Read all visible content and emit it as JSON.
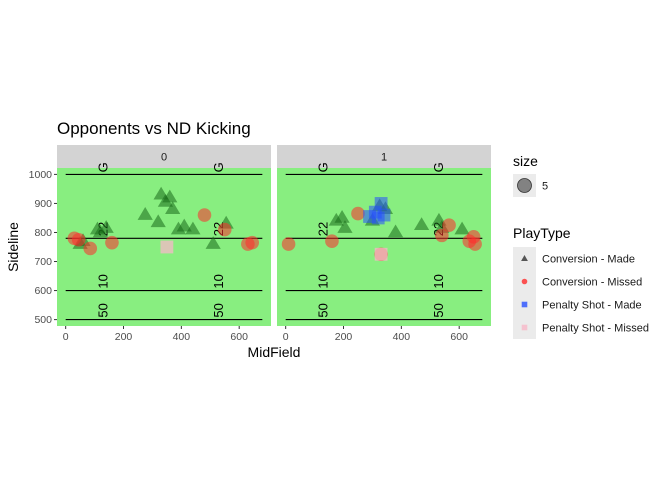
{
  "chart_data": {
    "type": "scatter",
    "title": "Opponents vs ND Kicking",
    "xlabel": "MidField",
    "ylabel": "Sideline",
    "xlim": [
      -30,
      710
    ],
    "ylim": [
      478,
      1022
    ],
    "x_ticks": [
      0,
      200,
      400,
      600
    ],
    "y_ticks": [
      500,
      600,
      700,
      800,
      900,
      1000
    ],
    "panel_background": "#88ee80",
    "strip_background": "#d3d3d3",
    "facets": [
      {
        "label": "0",
        "points": [
          {
            "type": "Conversion - Made",
            "x": 50,
            "y": 760
          },
          {
            "type": "Conversion - Made",
            "x": 60,
            "y": 770
          },
          {
            "type": "Conversion - Made",
            "x": 110,
            "y": 810
          },
          {
            "type": "Conversion - Made",
            "x": 120,
            "y": 800
          },
          {
            "type": "Conversion - Made",
            "x": 140,
            "y": 815
          },
          {
            "type": "Conversion - Made",
            "x": 275,
            "y": 860
          },
          {
            "type": "Conversion - Made",
            "x": 320,
            "y": 835
          },
          {
            "type": "Conversion - Made",
            "x": 330,
            "y": 930
          },
          {
            "type": "Conversion - Made",
            "x": 345,
            "y": 905
          },
          {
            "type": "Conversion - Made",
            "x": 360,
            "y": 920
          },
          {
            "type": "Conversion - Made",
            "x": 370,
            "y": 880
          },
          {
            "type": "Conversion - Made",
            "x": 390,
            "y": 810
          },
          {
            "type": "Conversion - Made",
            "x": 410,
            "y": 820
          },
          {
            "type": "Conversion - Made",
            "x": 440,
            "y": 810
          },
          {
            "type": "Conversion - Made",
            "x": 510,
            "y": 760
          },
          {
            "type": "Conversion - Made",
            "x": 555,
            "y": 830
          },
          {
            "type": "Conversion - Missed",
            "x": 30,
            "y": 780
          },
          {
            "type": "Conversion - Missed",
            "x": 45,
            "y": 775
          },
          {
            "type": "Conversion - Missed",
            "x": 85,
            "y": 745
          },
          {
            "type": "Conversion - Missed",
            "x": 160,
            "y": 765
          },
          {
            "type": "Conversion - Missed",
            "x": 480,
            "y": 860
          },
          {
            "type": "Conversion - Missed",
            "x": 550,
            "y": 810
          },
          {
            "type": "Conversion - Missed",
            "x": 630,
            "y": 760
          },
          {
            "type": "Conversion - Missed",
            "x": 645,
            "y": 765
          },
          {
            "type": "Penalty Shot - Missed",
            "x": 350,
            "y": 750
          }
        ]
      },
      {
        "label": "1",
        "points": [
          {
            "type": "Conversion - Made",
            "x": 175,
            "y": 840
          },
          {
            "type": "Conversion - Made",
            "x": 195,
            "y": 850
          },
          {
            "type": "Conversion - Made",
            "x": 205,
            "y": 815
          },
          {
            "type": "Conversion - Made",
            "x": 300,
            "y": 840
          },
          {
            "type": "Conversion - Made",
            "x": 325,
            "y": 890
          },
          {
            "type": "Conversion - Made",
            "x": 345,
            "y": 880
          },
          {
            "type": "Conversion - Made",
            "x": 380,
            "y": 800
          },
          {
            "type": "Conversion - Made",
            "x": 470,
            "y": 825
          },
          {
            "type": "Conversion - Made",
            "x": 530,
            "y": 840
          },
          {
            "type": "Conversion - Made",
            "x": 540,
            "y": 815
          },
          {
            "type": "Conversion - Made",
            "x": 610,
            "y": 810
          },
          {
            "type": "Conversion - Missed",
            "x": 10,
            "y": 760
          },
          {
            "type": "Conversion - Missed",
            "x": 160,
            "y": 770
          },
          {
            "type": "Conversion - Missed",
            "x": 250,
            "y": 865
          },
          {
            "type": "Conversion - Missed",
            "x": 330,
            "y": 725
          },
          {
            "type": "Conversion - Missed",
            "x": 540,
            "y": 790
          },
          {
            "type": "Conversion - Missed",
            "x": 565,
            "y": 825
          },
          {
            "type": "Conversion - Missed",
            "x": 635,
            "y": 770
          },
          {
            "type": "Conversion - Missed",
            "x": 650,
            "y": 785
          },
          {
            "type": "Conversion - Missed",
            "x": 655,
            "y": 760
          },
          {
            "type": "Penalty Shot - Made",
            "x": 290,
            "y": 855
          },
          {
            "type": "Penalty Shot - Made",
            "x": 310,
            "y": 870
          },
          {
            "type": "Penalty Shot - Made",
            "x": 320,
            "y": 850
          },
          {
            "type": "Penalty Shot - Made",
            "x": 330,
            "y": 900
          },
          {
            "type": "Penalty Shot - Made",
            "x": 340,
            "y": 860
          },
          {
            "type": "Penalty Shot - Missed",
            "x": 330,
            "y": 725
          }
        ]
      }
    ],
    "field_lines": [
      {
        "y": 500,
        "x_from": 0,
        "x_to": 680,
        "labels": [
          {
            "x": 130,
            "text": "50"
          },
          {
            "x": 530,
            "text": "50"
          }
        ]
      },
      {
        "y": 600,
        "x_from": 0,
        "x_to": 680,
        "labels": [
          {
            "x": 130,
            "text": "10"
          },
          {
            "x": 530,
            "text": "10"
          }
        ]
      },
      {
        "y": 780,
        "x_from": 0,
        "x_to": 680,
        "labels": [
          {
            "x": 130,
            "text": "22"
          },
          {
            "x": 530,
            "text": "22"
          }
        ]
      },
      {
        "y": 1000,
        "x_from": 0,
        "x_to": 680,
        "labels": [
          {
            "x": 130,
            "text": "G"
          },
          {
            "x": 530,
            "text": "G"
          }
        ]
      }
    ],
    "legends": [
      {
        "title": "size",
        "entries": [
          {
            "label": "5",
            "shape": "circle",
            "color": "#555555"
          }
        ]
      },
      {
        "title": "PlayType",
        "entries": [
          {
            "label": "Conversion - Made",
            "shape": "triangle",
            "color": "#1a6b1a"
          },
          {
            "label": "Conversion - Missed",
            "shape": "circle",
            "color": "#ff2b2b"
          },
          {
            "label": "Penalty Shot - Made",
            "shape": "square",
            "color": "#2850ff"
          },
          {
            "label": "Penalty Shot - Missed",
            "shape": "square",
            "color": "#f7b8c8"
          }
        ]
      }
    ],
    "legend_position": "right"
  }
}
